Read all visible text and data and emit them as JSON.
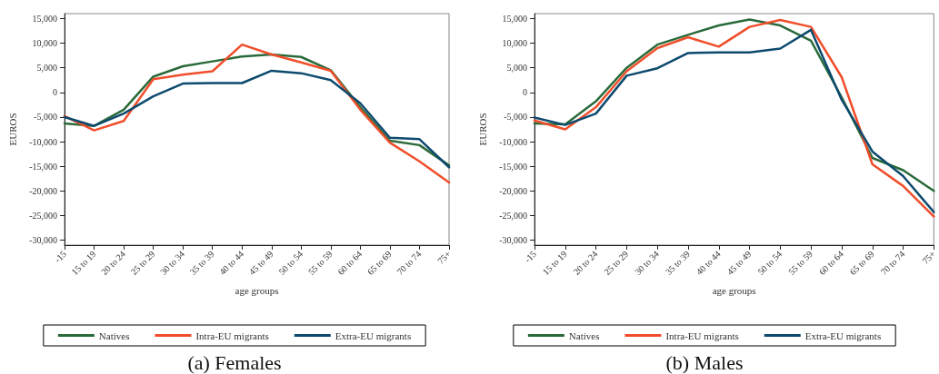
{
  "chart_data": [
    {
      "type": "line",
      "title": "(a) Females",
      "xlabel": "age groups",
      "ylabel": "EUROS",
      "categories": [
        "-15",
        "15 to 19",
        "20 to 24",
        "25 to 29",
        "30 to 34",
        "35 to 39",
        "40 to 44",
        "45 to 49",
        "50 to 54",
        "55 to 59",
        "60 to 64",
        "65 to 69",
        "70 to 74",
        "75+"
      ],
      "series": [
        {
          "name": "Natives",
          "color": "#2a6a3a",
          "values": [
            -6300,
            -6800,
            -3500,
            3200,
            5300,
            6300,
            7300,
            7700,
            7200,
            4500,
            -3000,
            -9800,
            -10700,
            -14800
          ]
        },
        {
          "name": "Intra-EU migrants",
          "color": "#f04e2a",
          "values": [
            -4800,
            -7700,
            -5800,
            2700,
            3600,
            4300,
            9700,
            7700,
            6100,
            4400,
            -3500,
            -10200,
            -14000,
            -18300
          ]
        },
        {
          "name": "Extra-EU migrants",
          "color": "#0d4a6e",
          "values": [
            -5000,
            -6800,
            -4300,
            -800,
            1800,
            1900,
            1900,
            4400,
            3900,
            2500,
            -2200,
            -9200,
            -9500,
            -15200
          ]
        }
      ],
      "ylim": [
        -31000,
        16000
      ],
      "yticks": [
        {
          "value": -30000,
          "label": "-30,000"
        },
        {
          "value": -25000,
          "label": "-25,000"
        },
        {
          "value": -20000,
          "label": "-20,000"
        },
        {
          "value": -15000,
          "label": "-15,000"
        },
        {
          "value": -10000,
          "label": "-10,000"
        },
        {
          "value": -5000,
          "label": "-5,000"
        },
        0,
        {
          "value": 5000,
          "label": "5,000"
        },
        {
          "value": 10000,
          "label": "10,000"
        },
        {
          "value": 15000,
          "label": "15,000"
        }
      ],
      "grid": false,
      "legend": "bottom",
      "marker": "none",
      "line_style": "solid"
    },
    {
      "type": "line",
      "title": "(b) Males",
      "xlabel": "age groups",
      "ylabel": "EUROS",
      "categories": [
        "-15",
        "15 to 19",
        "20 to 24",
        "25 to 29",
        "30 to 34",
        "35 to 39",
        "40 to 44",
        "45 to 49",
        "50 to 54",
        "55 to 59",
        "60 to 64",
        "65 to 69",
        "70 to 74",
        "75+"
      ],
      "series": [
        {
          "name": "Natives",
          "color": "#2a6a3a",
          "values": [
            -6300,
            -6500,
            -1800,
            5000,
            9700,
            11700,
            13600,
            14800,
            13600,
            10500,
            -1000,
            -13300,
            -15800,
            -20000
          ]
        },
        {
          "name": "Intra-EU migrants",
          "color": "#f04e2a",
          "values": [
            -5700,
            -7500,
            -3000,
            4300,
            9000,
            11200,
            9300,
            13300,
            14700,
            13300,
            3100,
            -14600,
            -19000,
            -25200
          ]
        },
        {
          "name": "Extra-EU migrants",
          "color": "#0d4a6e",
          "values": [
            -5100,
            -6600,
            -4300,
            3400,
            4900,
            8000,
            8100,
            8100,
            8900,
            12700,
            -1500,
            -12000,
            -17000,
            -24300
          ]
        }
      ],
      "ylim": [
        -31000,
        16000
      ],
      "yticks": [
        {
          "value": -30000,
          "label": "-30,000"
        },
        {
          "value": -25000,
          "label": "-25,000"
        },
        {
          "value": -20000,
          "label": "-20,000"
        },
        {
          "value": -15000,
          "label": "-15,000"
        },
        {
          "value": -10000,
          "label": "-10,000"
        },
        {
          "value": -5000,
          "label": "-5,000"
        },
        0,
        {
          "value": 5000,
          "label": "5,000"
        },
        {
          "value": 10000,
          "label": "10,000"
        },
        {
          "value": 15000,
          "label": "15,000"
        }
      ],
      "grid": false,
      "legend": "bottom",
      "marker": "none",
      "line_style": "solid"
    }
  ]
}
